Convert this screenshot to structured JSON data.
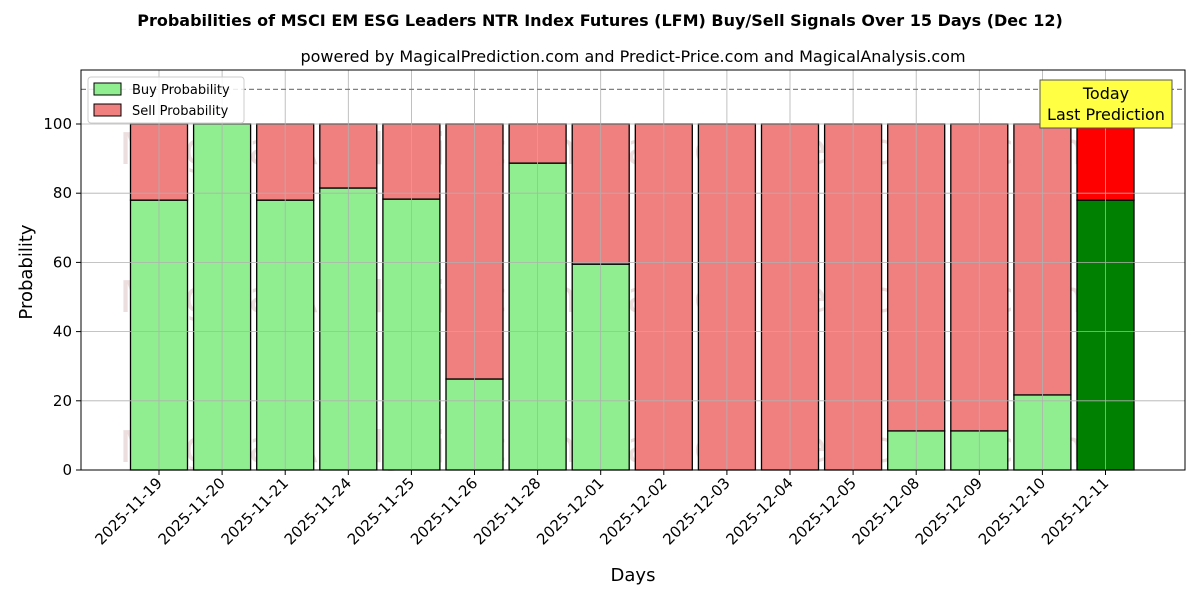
{
  "chart_data": {
    "type": "bar",
    "stacked": true,
    "title": "Probabilities of MSCI EM ESG Leaders NTR Index Futures (LFM) Buy/Sell Signals Over 15 Days (Dec 12)",
    "subtitle": "powered by MagicalPrediction.com and Predict-Price.com and MagicalAnalysis.com",
    "xlabel": "Days",
    "ylabel": "Probability",
    "ylim": [
      0,
      115
    ],
    "yticks": [
      0,
      20,
      40,
      60,
      80,
      100
    ],
    "grid": true,
    "legend_position": "upper left",
    "categories": [
      "2025-11-19",
      "2025-11-20",
      "2025-11-21",
      "2025-11-24",
      "2025-11-25",
      "2025-11-26",
      "2025-11-28",
      "2025-12-01",
      "2025-12-02",
      "2025-12-03",
      "2025-12-04",
      "2025-12-05",
      "2025-12-08",
      "2025-12-09",
      "2025-12-10",
      "2025-12-11"
    ],
    "series": [
      {
        "name": "Buy Probability",
        "color": "#90ee90",
        "values": [
          78.0,
          100,
          78.0,
          81.5,
          78.3,
          26.3,
          88.7,
          59.5,
          0,
          0,
          0,
          0,
          11.3,
          11.3,
          21.7,
          78.0
        ]
      },
      {
        "name": "Sell Probability",
        "color": "#f08080",
        "values": [
          22.0,
          0,
          22.0,
          18.5,
          21.7,
          73.7,
          11.3,
          40.5,
          100,
          100,
          100,
          100,
          88.7,
          88.7,
          78.3,
          22.0
        ]
      }
    ],
    "highlight": {
      "index": 15,
      "buy_color": "#008000",
      "sell_color": "#ff0000"
    },
    "reference_line": {
      "y": 110,
      "style": "dashed"
    },
    "annotation": {
      "line1": "Today",
      "line2": "Last Prediction"
    },
    "watermarks": [
      "MagicalAnalysis.com",
      "MagicalPrediction.com"
    ]
  }
}
